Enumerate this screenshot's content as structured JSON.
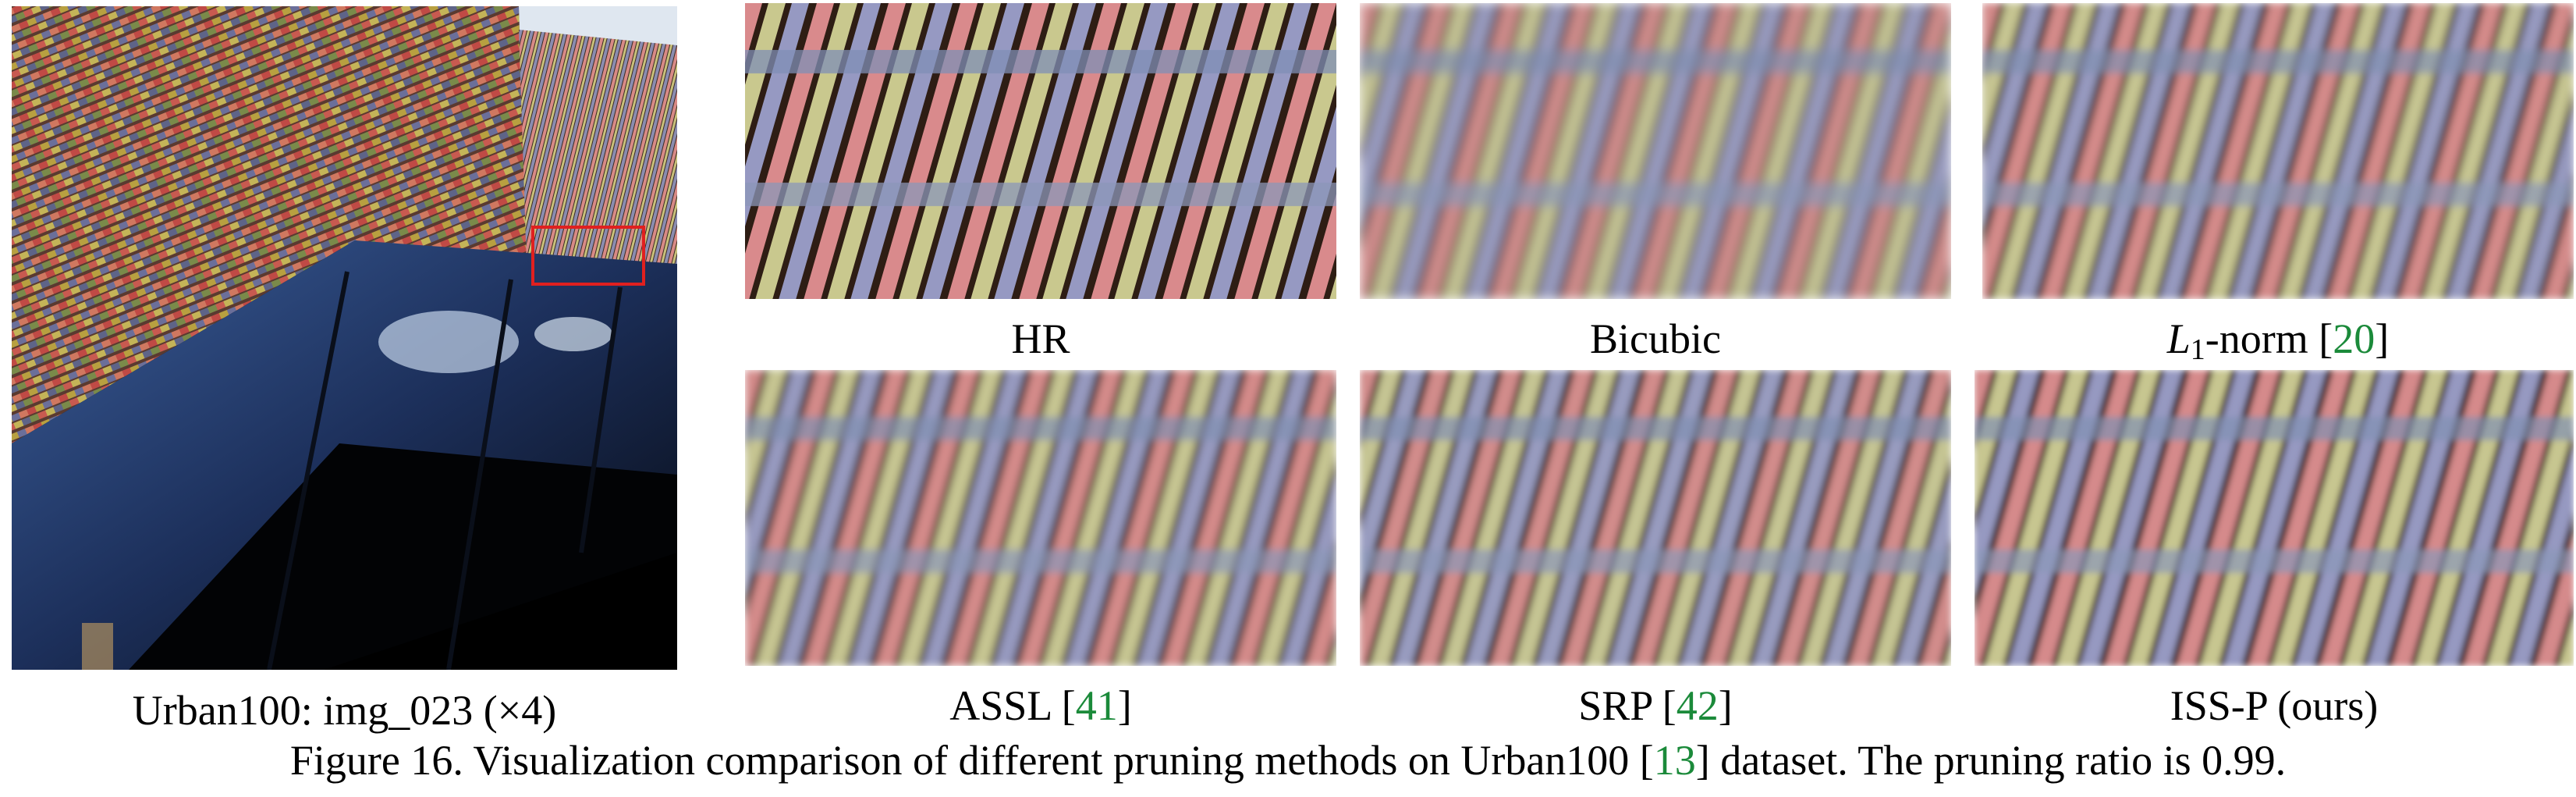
{
  "main_image": {
    "caption_prefix": "Urban100: img",
    "caption_sub": "_023",
    "caption_suffix": " (×4)"
  },
  "panels": [
    {
      "id": "hr",
      "label": "HR"
    },
    {
      "id": "bicubic",
      "label": "Bicubic"
    },
    {
      "id": "l1norm",
      "label_math": "L",
      "label_sub": "1",
      "label_rest": "-norm [",
      "cite": "20",
      "label_close": "]"
    },
    {
      "id": "assl",
      "label": "ASSL [",
      "cite": "41",
      "label_close": "]"
    },
    {
      "id": "srp",
      "label": "SRP [",
      "cite": "42",
      "label_close": "]"
    },
    {
      "id": "issp",
      "label": "ISS-P (ours)"
    }
  ],
  "figure_caption": {
    "prefix": "Figure 16.  Visualization comparison of different pruning methods on Urban100 [",
    "cite": "13",
    "suffix": "] dataset. The pruning ratio is 0.99."
  },
  "colors": {
    "citation": "#1b8a3a",
    "highlight_box": "#e0201f"
  }
}
